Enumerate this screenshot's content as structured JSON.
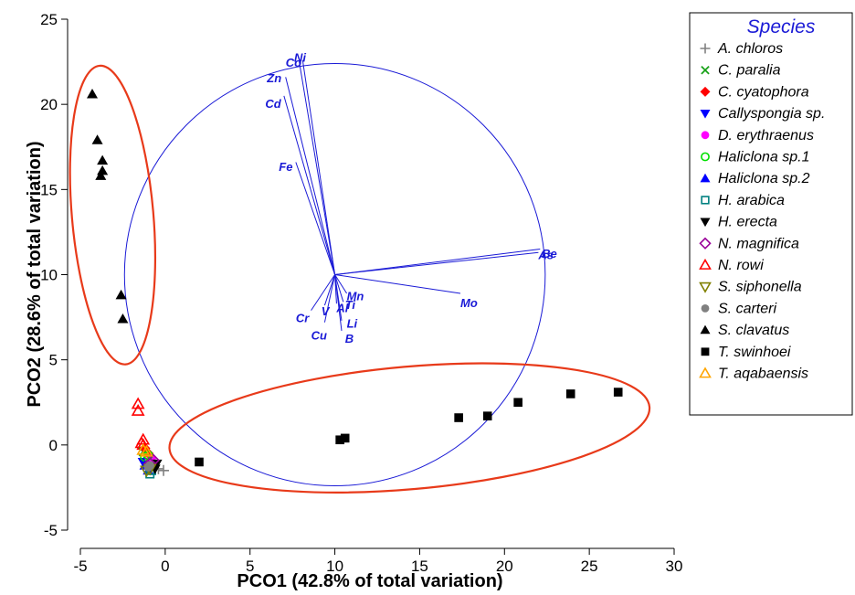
{
  "chart_data": {
    "type": "scatter",
    "xlabel": "PCO1 (42.8% of total variation)",
    "ylabel": "PCO2 (28.6% of total variation)",
    "xlim": [
      -5,
      30
    ],
    "ylim": [
      -5,
      25
    ],
    "xticks": [
      -5,
      0,
      5,
      10,
      15,
      20,
      25,
      30
    ],
    "yticks": [
      -5,
      0,
      5,
      10,
      15,
      20,
      25
    ],
    "xtick_labels": [
      "-5",
      "0",
      "5",
      "10",
      "15",
      "20",
      "25",
      "30"
    ],
    "ytick_labels": [
      "-5",
      "0",
      "5",
      "10",
      "15",
      "20",
      "25"
    ],
    "grid": false,
    "legend": {
      "title": "Species",
      "placement": "right",
      "entries": [
        {
          "name": "A. chloros",
          "color": "#808080",
          "marker": "plus"
        },
        {
          "name": "C. paralia",
          "color": "#1aa21a",
          "marker": "x"
        },
        {
          "name": "C. cyatophora",
          "color": "#ff0000",
          "marker": "diamond-filled"
        },
        {
          "name": "Callyspongia sp.",
          "color": "#0000ff",
          "marker": "triangle-down-filled"
        },
        {
          "name": "D. erythraenus",
          "color": "#ff00ff",
          "marker": "circle-filled"
        },
        {
          "name": "Haliclona sp.1",
          "color": "#00e000",
          "marker": "circle-open"
        },
        {
          "name": "Haliclona sp.2",
          "color": "#0000ff",
          "marker": "triangle-up-filled"
        },
        {
          "name": "H. arabica",
          "color": "#008080",
          "marker": "square-open"
        },
        {
          "name": "H. erecta",
          "color": "#000000",
          "marker": "triangle-down-filled"
        },
        {
          "name": "N. magnifica",
          "color": "#990099",
          "marker": "diamond-open"
        },
        {
          "name": "N. rowi",
          "color": "#ff0000",
          "marker": "triangle-up-open"
        },
        {
          "name": "S. siphonella",
          "color": "#808000",
          "marker": "triangle-down-open"
        },
        {
          "name": "S. carteri",
          "color": "#808080",
          "marker": "circle-filled"
        },
        {
          "name": "S. clavatus",
          "color": "#000000",
          "marker": "triangle-up-filled"
        },
        {
          "name": "T. swinhoei",
          "color": "#000000",
          "marker": "square-filled"
        },
        {
          "name": "T. aqabaensis",
          "color": "#ffa500",
          "marker": "triangle-up-open"
        }
      ]
    },
    "series": [
      {
        "name": "S. clavatus",
        "points": [
          [
            -4.3,
            20.6
          ],
          [
            -4.0,
            17.9
          ],
          [
            -3.7,
            16.7
          ],
          [
            -3.7,
            16.1
          ],
          [
            -3.8,
            15.8
          ],
          [
            -2.6,
            8.8
          ],
          [
            -2.5,
            7.4
          ]
        ]
      },
      {
        "name": "T. swinhoei",
        "points": [
          [
            2.0,
            -1.0
          ],
          [
            10.3,
            0.3
          ],
          [
            10.6,
            0.4
          ],
          [
            17.3,
            1.6
          ],
          [
            19.0,
            1.7
          ],
          [
            20.8,
            2.5
          ],
          [
            23.9,
            3.0
          ],
          [
            26.7,
            3.1
          ]
        ]
      },
      {
        "name": "N. rowi",
        "points": [
          [
            -1.6,
            2.4
          ],
          [
            -1.6,
            2.0
          ],
          [
            -1.3,
            0.3
          ],
          [
            -1.3,
            0.0
          ],
          [
            -1.4,
            0.1
          ]
        ]
      },
      {
        "name": "A. chloros",
        "points": [
          [
            -0.1,
            -1.5
          ],
          [
            -0.4,
            -1.4
          ]
        ]
      },
      {
        "name": "C. paralia",
        "points": [
          [
            -1.1,
            -0.6
          ],
          [
            -1.3,
            -0.4
          ]
        ]
      },
      {
        "name": "C. cyatophora",
        "points": [
          [
            -1.2,
            -0.2
          ],
          [
            -1.0,
            -0.5
          ]
        ]
      },
      {
        "name": "Callyspongia sp.",
        "points": [
          [
            -1.1,
            -1.1
          ],
          [
            -0.9,
            -1.3
          ],
          [
            -1.3,
            -1.0
          ]
        ]
      },
      {
        "name": "D. erythraenus",
        "points": [
          [
            -0.8,
            -0.8
          ],
          [
            -1.0,
            -1.0
          ]
        ]
      },
      {
        "name": "Haliclona sp.1",
        "points": [
          [
            -1.2,
            -0.7
          ],
          [
            -1.0,
            -0.6
          ]
        ]
      },
      {
        "name": "Haliclona sp.2",
        "points": [
          [
            -1.2,
            -1.2
          ],
          [
            -1.0,
            -1.5
          ]
        ]
      },
      {
        "name": "H. arabica",
        "points": [
          [
            -0.9,
            -1.7
          ],
          [
            -0.8,
            -1.5
          ]
        ]
      },
      {
        "name": "H. erecta",
        "points": [
          [
            -0.5,
            -1.1
          ],
          [
            -0.6,
            -1.4
          ]
        ]
      },
      {
        "name": "N. magnifica",
        "points": [
          [
            -0.7,
            -0.9
          ],
          [
            -0.9,
            -1.1
          ]
        ]
      },
      {
        "name": "S. siphonella",
        "points": [
          [
            -1.1,
            -1.5
          ],
          [
            -0.9,
            -1.4
          ]
        ]
      },
      {
        "name": "S. carteri",
        "points": [
          [
            -0.9,
            -1.2
          ],
          [
            -1.0,
            -1.3
          ]
        ]
      },
      {
        "name": "T. aqabaensis",
        "points": [
          [
            -1.3,
            -0.3
          ],
          [
            -1.1,
            -0.4
          ]
        ]
      }
    ],
    "vectors": {
      "origin": [
        10,
        10
      ],
      "circle_radius": 12.4,
      "color": "#1a1ad6",
      "items": [
        {
          "label": "Ni",
          "end": [
            8.1,
            22.6
          ],
          "label_at": [
            7.6,
            22.5
          ]
        },
        {
          "label": "Co",
          "end": [
            7.9,
            22.5
          ],
          "label_at": [
            7.1,
            22.2
          ]
        },
        {
          "label": "Zn",
          "end": [
            7.1,
            21.6
          ],
          "label_at": [
            6.0,
            21.3
          ]
        },
        {
          "label": "Cd",
          "end": [
            7.0,
            20.5
          ],
          "label_at": [
            5.9,
            19.8
          ]
        },
        {
          "label": "Fe",
          "end": [
            7.7,
            16.6
          ],
          "label_at": [
            6.7,
            16.1
          ]
        },
        {
          "label": "Be",
          "end": [
            22.1,
            11.5
          ],
          "label_at": [
            22.2,
            11.0
          ]
        },
        {
          "label": "As",
          "end": [
            22.0,
            11.3
          ],
          "label_at": [
            22.0,
            10.9
          ]
        },
        {
          "label": "Mo",
          "end": [
            17.4,
            8.9
          ],
          "label_at": [
            17.4,
            8.1
          ]
        },
        {
          "label": "Mn",
          "end": [
            10.7,
            8.9
          ],
          "label_at": [
            10.7,
            8.5
          ]
        },
        {
          "label": "Ti",
          "end": [
            10.5,
            8.4
          ],
          "label_at": [
            10.6,
            8.0
          ]
        },
        {
          "label": "Al",
          "end": [
            10.1,
            8.3
          ],
          "label_at": [
            10.1,
            7.8
          ]
        },
        {
          "label": "V",
          "end": [
            9.4,
            8.2
          ],
          "label_at": [
            9.2,
            7.6
          ]
        },
        {
          "label": "Cr",
          "end": [
            8.6,
            7.9
          ],
          "label_at": [
            7.7,
            7.2
          ]
        },
        {
          "label": "Li",
          "end": [
            10.4,
            7.3
          ],
          "label_at": [
            10.7,
            6.9
          ]
        },
        {
          "label": "Cu",
          "end": [
            9.4,
            7.2
          ],
          "label_at": [
            8.6,
            6.2
          ]
        },
        {
          "label": "B",
          "end": [
            10.4,
            6.7
          ],
          "label_at": [
            10.6,
            6.0
          ]
        }
      ]
    },
    "group_ellipses": [
      {
        "center": [
          -3.1,
          13.5
        ],
        "rx": 2.4,
        "ry": 8.8,
        "rotation_deg": 5,
        "color": "#e83a1a"
      },
      {
        "center": [
          14.4,
          1.0
        ],
        "rx": 14.2,
        "ry": 3.6,
        "rotation_deg": 5,
        "color": "#e83a1a"
      }
    ]
  }
}
